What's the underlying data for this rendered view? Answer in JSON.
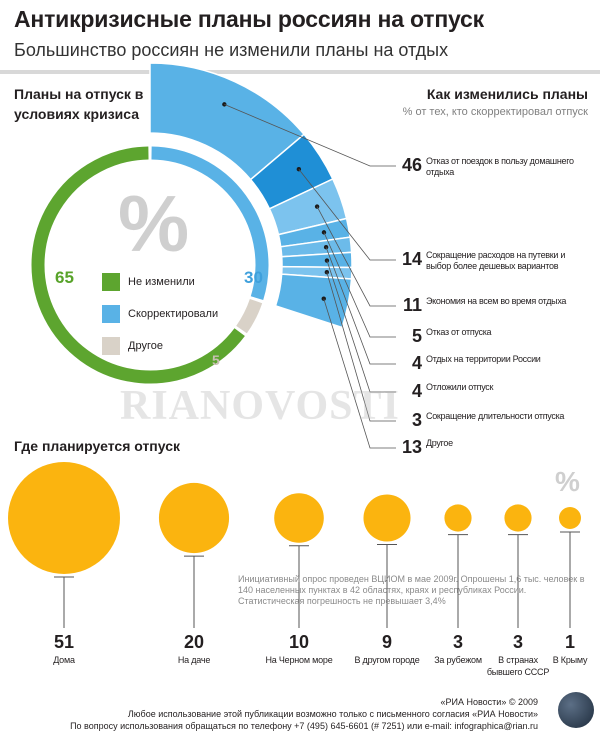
{
  "header": {
    "title": "Антикризисные планы россиян на отпуск",
    "subtitle": "Большинство россиян не изменили планы на отдых"
  },
  "left_section": {
    "heading": "Планы на отпуск в условиях кризиса",
    "percent_sign": "%",
    "values": {
      "unchanged": "65",
      "adjusted": "30",
      "other": "5"
    },
    "legend": [
      {
        "label": "Не изменили",
        "color": "#5da52f"
      },
      {
        "label": "Скорректировали",
        "color": "#59b2e6"
      },
      {
        "label": "Другое",
        "color": "#d9d2c8"
      }
    ]
  },
  "right_section": {
    "heading": "Как изменились планы",
    "subheading": "% от тех, кто скорректировал отпуск"
  },
  "bottom_section": {
    "heading": "Где планируется отпуск",
    "percent_sign": "%",
    "note": "Инициативный опрос проведен ВЦИОМ в мае 2009г. Опрошены 1,6 тыс. человек в 140 населенных пунктах в 42 областях, краях и республиках России. Статистическая погрешность не превышает 3,4%"
  },
  "footer": {
    "copyright": "«РИА Новости» © 2009",
    "line1": "Любое использование этой публикации возможно только с письменного согласия «РИА Новости»",
    "line2": "По вопросу использования обращаться по телефону +7 (495) 645-6601 (# 7251) или e-mail: infographica@rian.ru"
  },
  "watermark": "RIANOVOSTI",
  "colors": {
    "green": "#5da52f",
    "blue": "#59b2e6",
    "blue_dark": "#1f8fd6",
    "beige": "#d9d2c8",
    "orange": "#fbb40f"
  },
  "chart_data": [
    {
      "type": "pie",
      "title": "Планы на отпуск в условиях кризиса",
      "categories": [
        "Не изменили",
        "Скорректировали",
        "Другое"
      ],
      "values": [
        65,
        30,
        5
      ]
    },
    {
      "type": "bar",
      "title": "Как изменились планы",
      "subtitle": "% от тех, кто скорректировал отпуск",
      "categories": [
        "Отказ от поездок в пользу домашнего отдыха",
        "Сокращение расходов на путевки и выбор более дешевых вариантов",
        "Экономия на всем во время отдыха",
        "Отказ от отпуска",
        "Отдых на территории России",
        "Отложили отпуск",
        "Сокращение длительности отпуска",
        "Другое"
      ],
      "values": [
        46,
        14,
        11,
        5,
        4,
        4,
        3,
        13
      ]
    },
    {
      "type": "bar",
      "title": "Где планируется отпуск",
      "categories": [
        "Дома",
        "На даче",
        "На Черном море",
        "В другом городе",
        "За рубежом",
        "В странах бывшего СССР",
        "В Крыму"
      ],
      "values": [
        51,
        20,
        10,
        9,
        3,
        3,
        1
      ]
    }
  ]
}
